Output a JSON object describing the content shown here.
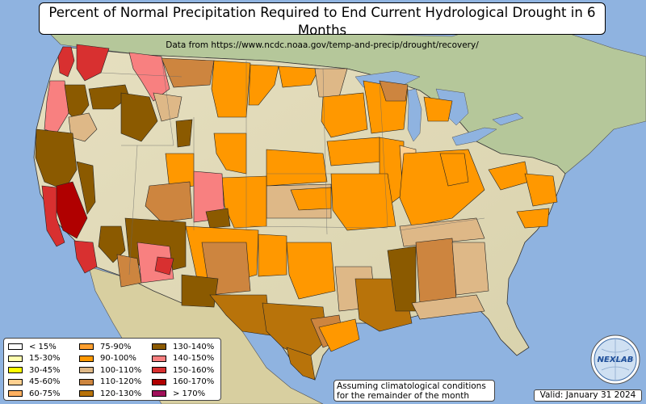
{
  "title": "Percent of Normal Precipitation Required to End Current Hydrological Drought in 6 Months",
  "subtitle": "Data from https://www.ncdc.noaa.gov/temp-and-precip/drought/recovery/",
  "legend": [
    {
      "label": "< 15%",
      "color": "#ffffff"
    },
    {
      "label": "15-30%",
      "color": "#ffffb0"
    },
    {
      "label": "30-45%",
      "color": "#ffff00"
    },
    {
      "label": "45-60%",
      "color": "#ffd090"
    },
    {
      "label": "60-75%",
      "color": "#ffb060"
    },
    {
      "label": "75-90%",
      "color": "#ffa030"
    },
    {
      "label": "90-100%",
      "color": "#ff9800"
    },
    {
      "label": "100-110%",
      "color": "#deb887"
    },
    {
      "label": "110-120%",
      "color": "#cd853f"
    },
    {
      "label": "120-130%",
      "color": "#b8730a"
    },
    {
      "label": "130-140%",
      "color": "#8b5a00"
    },
    {
      "label": "140-150%",
      "color": "#f88080"
    },
    {
      "label": "150-160%",
      "color": "#d83030"
    },
    {
      "label": "160-170%",
      "color": "#b00000"
    },
    {
      "label": "> 170%",
      "color": "#a0105a"
    }
  ],
  "note_line1": "Assuming climatological conditions",
  "note_line2": "for the remainder of the month",
  "valid": "Valid: January 31 2024",
  "logo_text": "NEXLAB",
  "colors": {
    "ocean": "#8fb3e0",
    "land": "#e8e2c0"
  }
}
